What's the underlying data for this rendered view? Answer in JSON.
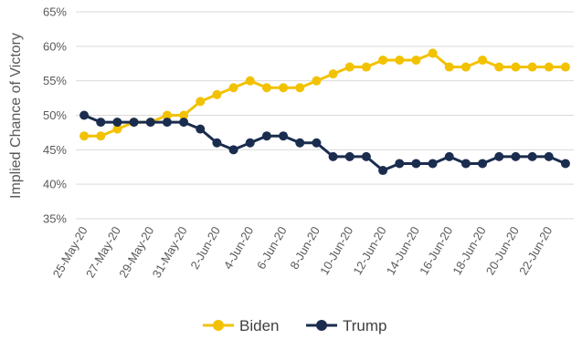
{
  "chart_data": {
    "type": "line",
    "ylabel": "Implied Chance of Victory",
    "xlabel": "",
    "ylim": [
      0.35,
      0.65
    ],
    "y_ticks": [
      0.35,
      0.4,
      0.45,
      0.5,
      0.55,
      0.6,
      0.65
    ],
    "y_tick_labels": [
      "35%",
      "40%",
      "45%",
      "50%",
      "55%",
      "60%",
      "65%"
    ],
    "grid": true,
    "legend_position": "bottom",
    "x_dates": [
      "25-May-20",
      "26-May-20",
      "27-May-20",
      "28-May-20",
      "29-May-20",
      "30-May-20",
      "31-May-20",
      "1-Jun-20",
      "2-Jun-20",
      "3-Jun-20",
      "4-Jun-20",
      "5-Jun-20",
      "6-Jun-20",
      "7-Jun-20",
      "8-Jun-20",
      "9-Jun-20",
      "10-Jun-20",
      "11-Jun-20",
      "12-Jun-20",
      "13-Jun-20",
      "14-Jun-20",
      "15-Jun-20",
      "16-Jun-20",
      "17-Jun-20",
      "18-Jun-20",
      "19-Jun-20",
      "20-Jun-20",
      "21-Jun-20",
      "22-Jun-20",
      "23-Jun-20"
    ],
    "x_tick_labels": [
      "25-May-20",
      "27-May-20",
      "29-May-20",
      "31-May-20",
      "2-Jun-20",
      "4-Jun-20",
      "6-Jun-20",
      "8-Jun-20",
      "10-Jun-20",
      "12-Jun-20",
      "14-Jun-20",
      "16-Jun-20",
      "18-Jun-20",
      "20-Jun-20",
      "22-Jun-20"
    ],
    "series": [
      {
        "name": "Biden",
        "color": "#F2C200",
        "values": [
          0.47,
          0.47,
          0.48,
          0.49,
          0.49,
          0.5,
          0.5,
          0.52,
          0.53,
          0.54,
          0.55,
          0.54,
          0.54,
          0.54,
          0.55,
          0.56,
          0.57,
          0.57,
          0.58,
          0.58,
          0.58,
          0.59,
          0.57,
          0.57,
          0.58,
          0.57,
          0.57,
          0.57,
          0.57,
          0.57
        ]
      },
      {
        "name": "Trump",
        "color": "#1B2D4F",
        "values": [
          0.5,
          0.49,
          0.49,
          0.49,
          0.49,
          0.49,
          0.49,
          0.48,
          0.46,
          0.45,
          0.46,
          0.47,
          0.47,
          0.46,
          0.46,
          0.44,
          0.44,
          0.44,
          0.42,
          0.43,
          0.43,
          0.43,
          0.44,
          0.43,
          0.43,
          0.44,
          0.44,
          0.44,
          0.44,
          0.43
        ]
      }
    ]
  }
}
